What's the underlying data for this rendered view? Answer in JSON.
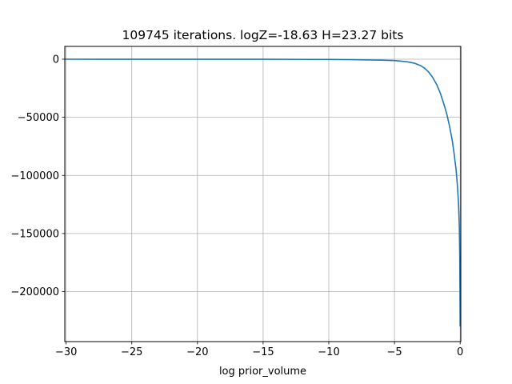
{
  "chart_data": {
    "type": "line",
    "title": "109745 iterations. logZ=-18.63 H=23.27 bits",
    "xlabel": "log prior_volume",
    "ylabel": "",
    "xlim": [
      -30.1,
      0.05
    ],
    "ylim": [
      -243000,
      11000
    ],
    "xticks": [
      {
        "value": -30,
        "label": "−30"
      },
      {
        "value": -25,
        "label": "−25"
      },
      {
        "value": -20,
        "label": "−20"
      },
      {
        "value": -15,
        "label": "−15"
      },
      {
        "value": -10,
        "label": "−10"
      },
      {
        "value": -5,
        "label": "−5"
      },
      {
        "value": 0,
        "label": "0"
      }
    ],
    "yticks": [
      {
        "value": 0,
        "label": "0"
      },
      {
        "value": -50000,
        "label": "−50000"
      },
      {
        "value": -100000,
        "label": "−100000"
      },
      {
        "value": -150000,
        "label": "−150000"
      },
      {
        "value": -200000,
        "label": "−200000"
      }
    ],
    "grid": true,
    "color": "#1f77b4",
    "series": [
      {
        "x": [
          -30.1,
          -25,
          -20,
          -15,
          -10,
          -8,
          -6,
          -5,
          -4.5,
          -4,
          -3.5,
          -3,
          -2.7,
          -2.4,
          -2.1,
          -1.8,
          -1.5,
          -1.2,
          -1,
          -0.8,
          -0.6,
          -0.45,
          -0.3,
          -0.2,
          -0.12,
          -0.06,
          -0.03,
          0
        ],
        "y": [
          -20,
          -25,
          -40,
          -90,
          -250,
          -450,
          -800,
          -1200,
          -1700,
          -2300,
          -3400,
          -5600,
          -7800,
          -11000,
          -15500,
          -21500,
          -29500,
          -40000,
          -48000,
          -58000,
          -70000,
          -82000,
          -96000,
          -110000,
          -125000,
          -145000,
          -170000,
          -230000
        ]
      }
    ]
  }
}
